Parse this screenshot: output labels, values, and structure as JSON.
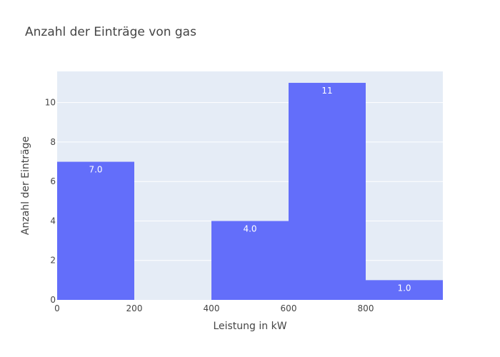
{
  "chart_data": {
    "type": "bar",
    "title": "Anzahl der Einträge von gas",
    "xlabel": "Leistung in kW",
    "ylabel": "Anzahl der Einträge",
    "bins": [
      {
        "x0": 0,
        "x1": 200,
        "value": 7,
        "label": "7.0"
      },
      {
        "x0": 200,
        "x1": 400,
        "value": 0,
        "label": ""
      },
      {
        "x0": 400,
        "x1": 600,
        "value": 4,
        "label": "4.0"
      },
      {
        "x0": 600,
        "x1": 800,
        "value": 11,
        "label": "11"
      },
      {
        "x0": 800,
        "x1": 1000,
        "value": 1,
        "label": "1.0"
      }
    ],
    "xlim": [
      0,
      1000
    ],
    "ylim": [
      0,
      11.58
    ],
    "xticks": [
      0,
      200,
      400,
      600,
      800
    ],
    "yticks": [
      0,
      2,
      4,
      6,
      8,
      10
    ],
    "grid": true,
    "bar_color": "#636efa",
    "plot_background": "#e5ecf6",
    "gridline_color": "#ffffff"
  }
}
